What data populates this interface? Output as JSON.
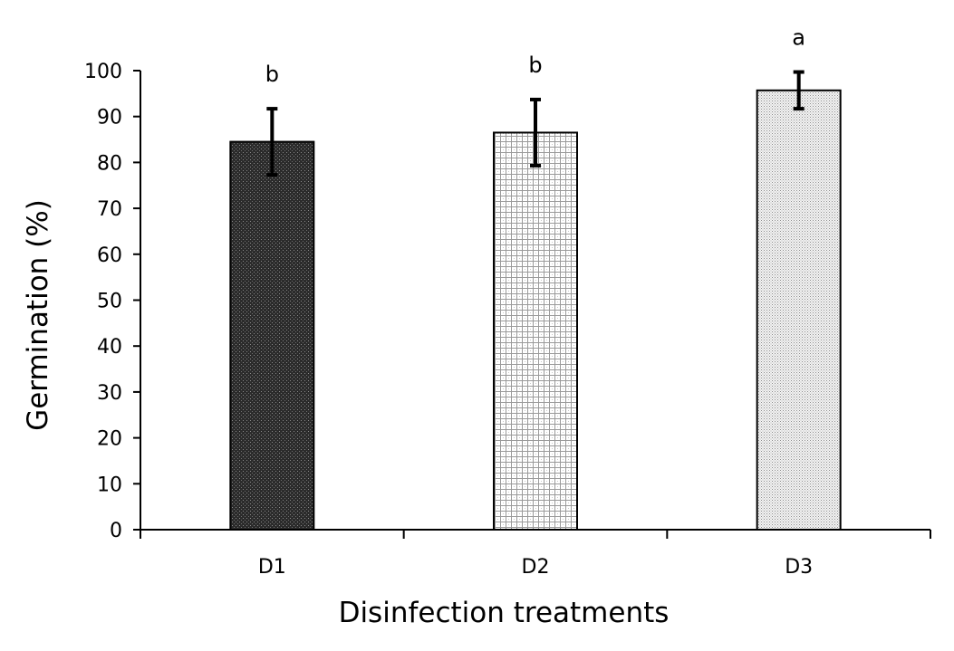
{
  "chart_data": {
    "type": "bar",
    "xlabel": "Disinfection treatments",
    "ylabel": "Germination (%)",
    "ylim": [
      0,
      100
    ],
    "y_ticks": [
      0,
      10,
      20,
      30,
      40,
      50,
      60,
      70,
      80,
      90,
      100
    ],
    "categories": [
      "D1",
      "D2",
      "D3"
    ],
    "values": [
      84.5,
      86.5,
      95.7
    ],
    "error": [
      7.2,
      7.2,
      4.0
    ],
    "significance": [
      "b",
      "b",
      "a"
    ],
    "grid": false,
    "legend": "none",
    "patterns": [
      "dark-dots",
      "grid-check",
      "fine-dots"
    ],
    "colors": {
      "axis": "#000000",
      "bar_outline": "#000000",
      "d1_fill": "#2a2a2a",
      "d2_fill": "#ffffff",
      "d3_fill": "#dcdcdc"
    }
  }
}
